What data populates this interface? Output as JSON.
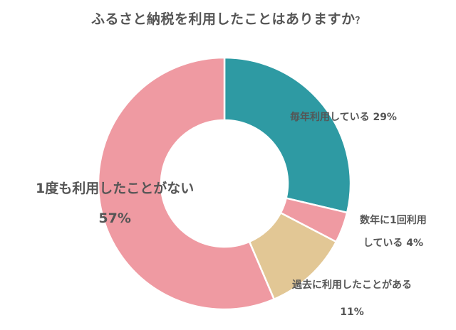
{
  "chart_data": {
    "type": "pie",
    "variant": "donut",
    "title": "ふるさと納税を利用したことはありますか？",
    "categories": [
      "毎年利用している",
      "数年に1回利用している",
      "過去に利用したことがある",
      "1度も利用したことがない"
    ],
    "values": [
      29,
      4,
      11,
      57
    ],
    "unit": "%",
    "colors": [
      "#2e9aa3",
      "#ef9aa2",
      "#e2c795",
      "#ef9aa2"
    ],
    "legend": "none (inline labels)",
    "start_angle": "12 o'clock, clockwise"
  },
  "title": {
    "main": "ふるさと納税を利用したことはありますか",
    "qmark": "？"
  },
  "labels": {
    "yearly": {
      "line1": "毎年利用している 29%"
    },
    "few_years": {
      "line1": "数年に1回利用",
      "line2": "している 4%"
    },
    "past": {
      "line1": "過去に利用したことがある",
      "line2": "11%"
    },
    "never": {
      "line1": "1度も利用したことがない",
      "line2": "57%"
    }
  }
}
